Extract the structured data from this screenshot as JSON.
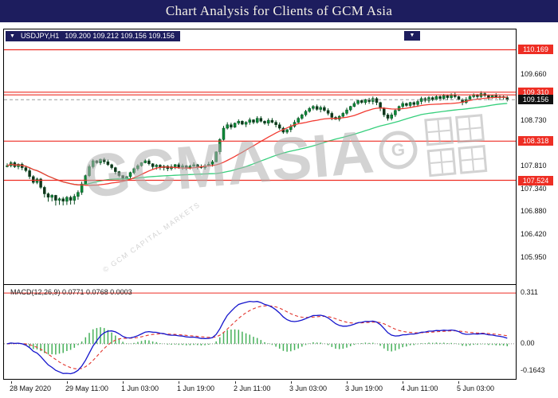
{
  "header": {
    "title": "Chart Analysis for Clients of GCM Asia"
  },
  "icons": {
    "dropdown": "▼"
  },
  "chart_info": {
    "symbol": "USDJPY,H1",
    "ohlc": "109.200 109.212 109.156 109.156"
  },
  "watermark": {
    "text": "GCMASIA",
    "logo_letter": "G",
    "caption": "© GCM CAPITAL MARKETS"
  },
  "macd_panel": {
    "label": "MACD(12,26,9) 0.0771 0.0768 0.0003"
  },
  "colors": {
    "header_bg": "#1d1d5e",
    "bull": "#0a8a38",
    "bear": "#12301b",
    "wick": "#064a1e",
    "level": "#ee2e24",
    "ma_fast": "#f23b32",
    "ma_slow": "#36cf7c",
    "macd_line": "#1414cc",
    "signal": "#e2342c",
    "hist": "#46b05a",
    "bid_line": "#999999"
  },
  "chart_data": {
    "type": "candlestick",
    "symbol": "USDJPY",
    "timeframe": "H1",
    "last_quote": {
      "open": 109.2,
      "high": 109.212,
      "low": 109.156,
      "close": 109.156
    },
    "price_ylim": [
      105.42,
      110.58
    ],
    "price_ticks": [
      109.66,
      108.73,
      107.81,
      107.34,
      106.88,
      106.42,
      105.95
    ],
    "red_lines": [
      110.169,
      109.31,
      109.255,
      108.318,
      107.524
    ],
    "red_line_labels": [
      110.169,
      109.31,
      108.318,
      107.524
    ],
    "current_price": 109.156,
    "open_first": 107.8,
    "closes": [
      107.82,
      107.88,
      107.8,
      107.85,
      107.78,
      107.72,
      107.6,
      107.48,
      107.55,
      107.38,
      107.25,
      107.18,
      107.22,
      107.12,
      107.15,
      107.1,
      107.18,
      107.12,
      107.2,
      107.28,
      107.45,
      107.62,
      107.8,
      107.92,
      107.88,
      107.95,
      107.9,
      107.84,
      107.78,
      107.7,
      107.62,
      107.55,
      107.6,
      107.68,
      107.76,
      107.82,
      107.88,
      107.92,
      107.86,
      107.8,
      107.83,
      107.78,
      107.81,
      107.76,
      107.8,
      107.84,
      107.79,
      107.82,
      107.78,
      107.81,
      107.84,
      107.8,
      107.78,
      107.82,
      107.85,
      107.9,
      108.1,
      108.35,
      108.58,
      108.65,
      108.6,
      108.68,
      108.72,
      108.66,
      108.7,
      108.75,
      108.7,
      108.78,
      108.72,
      108.68,
      108.74,
      108.7,
      108.65,
      108.58,
      108.5,
      108.55,
      108.62,
      108.7,
      108.78,
      108.85,
      108.92,
      108.98,
      109.02,
      108.96,
      109.0,
      108.94,
      108.88,
      108.8,
      108.76,
      108.82,
      108.88,
      108.95,
      109.02,
      109.08,
      109.14,
      109.1,
      109.16,
      109.12,
      109.18,
      109.1,
      108.98,
      108.85,
      108.78,
      108.85,
      108.94,
      109.02,
      109.08,
      109.04,
      109.1,
      109.06,
      109.12,
      109.18,
      109.14,
      109.2,
      109.16,
      109.22,
      109.18,
      109.24,
      109.2,
      109.26,
      109.22,
      109.16,
      109.1,
      109.16,
      109.22,
      109.26,
      109.22,
      109.28,
      109.24,
      109.2,
      109.24,
      109.2,
      109.22,
      109.2,
      109.156
    ],
    "low_cluster": {
      "from": 10,
      "to": 19,
      "extra": 0.05
    },
    "spike_low": {
      "index": 31,
      "price": 107.505
    },
    "ma_fast": {
      "period": 21
    },
    "ma_slow": {
      "period": 55
    },
    "macd": {
      "fast": 12,
      "slow": 26,
      "signal": 9,
      "display_values": [
        0.0771,
        0.0768,
        0.0003
      ],
      "ylim": [
        -0.215,
        0.36
      ],
      "level": 0.311,
      "scale_labels": [
        {
          "v": 0.311,
          "t": "0.311"
        },
        {
          "v": 0,
          "t": "0.00"
        },
        {
          "v": -0.1643,
          "t": "-0.1643"
        }
      ]
    },
    "x_labels": [
      "28 May 2020",
      "29 May 11:00",
      "1 Jun 03:00",
      "1 Jun 19:00",
      "2 Jun 11:00",
      "3 Jun 03:00",
      "3 Jun 19:00",
      "4 Jun 11:00",
      "5 Jun 03:00"
    ],
    "x_label_indices": [
      1,
      16,
      31,
      46,
      61,
      76,
      91,
      106,
      121
    ]
  }
}
